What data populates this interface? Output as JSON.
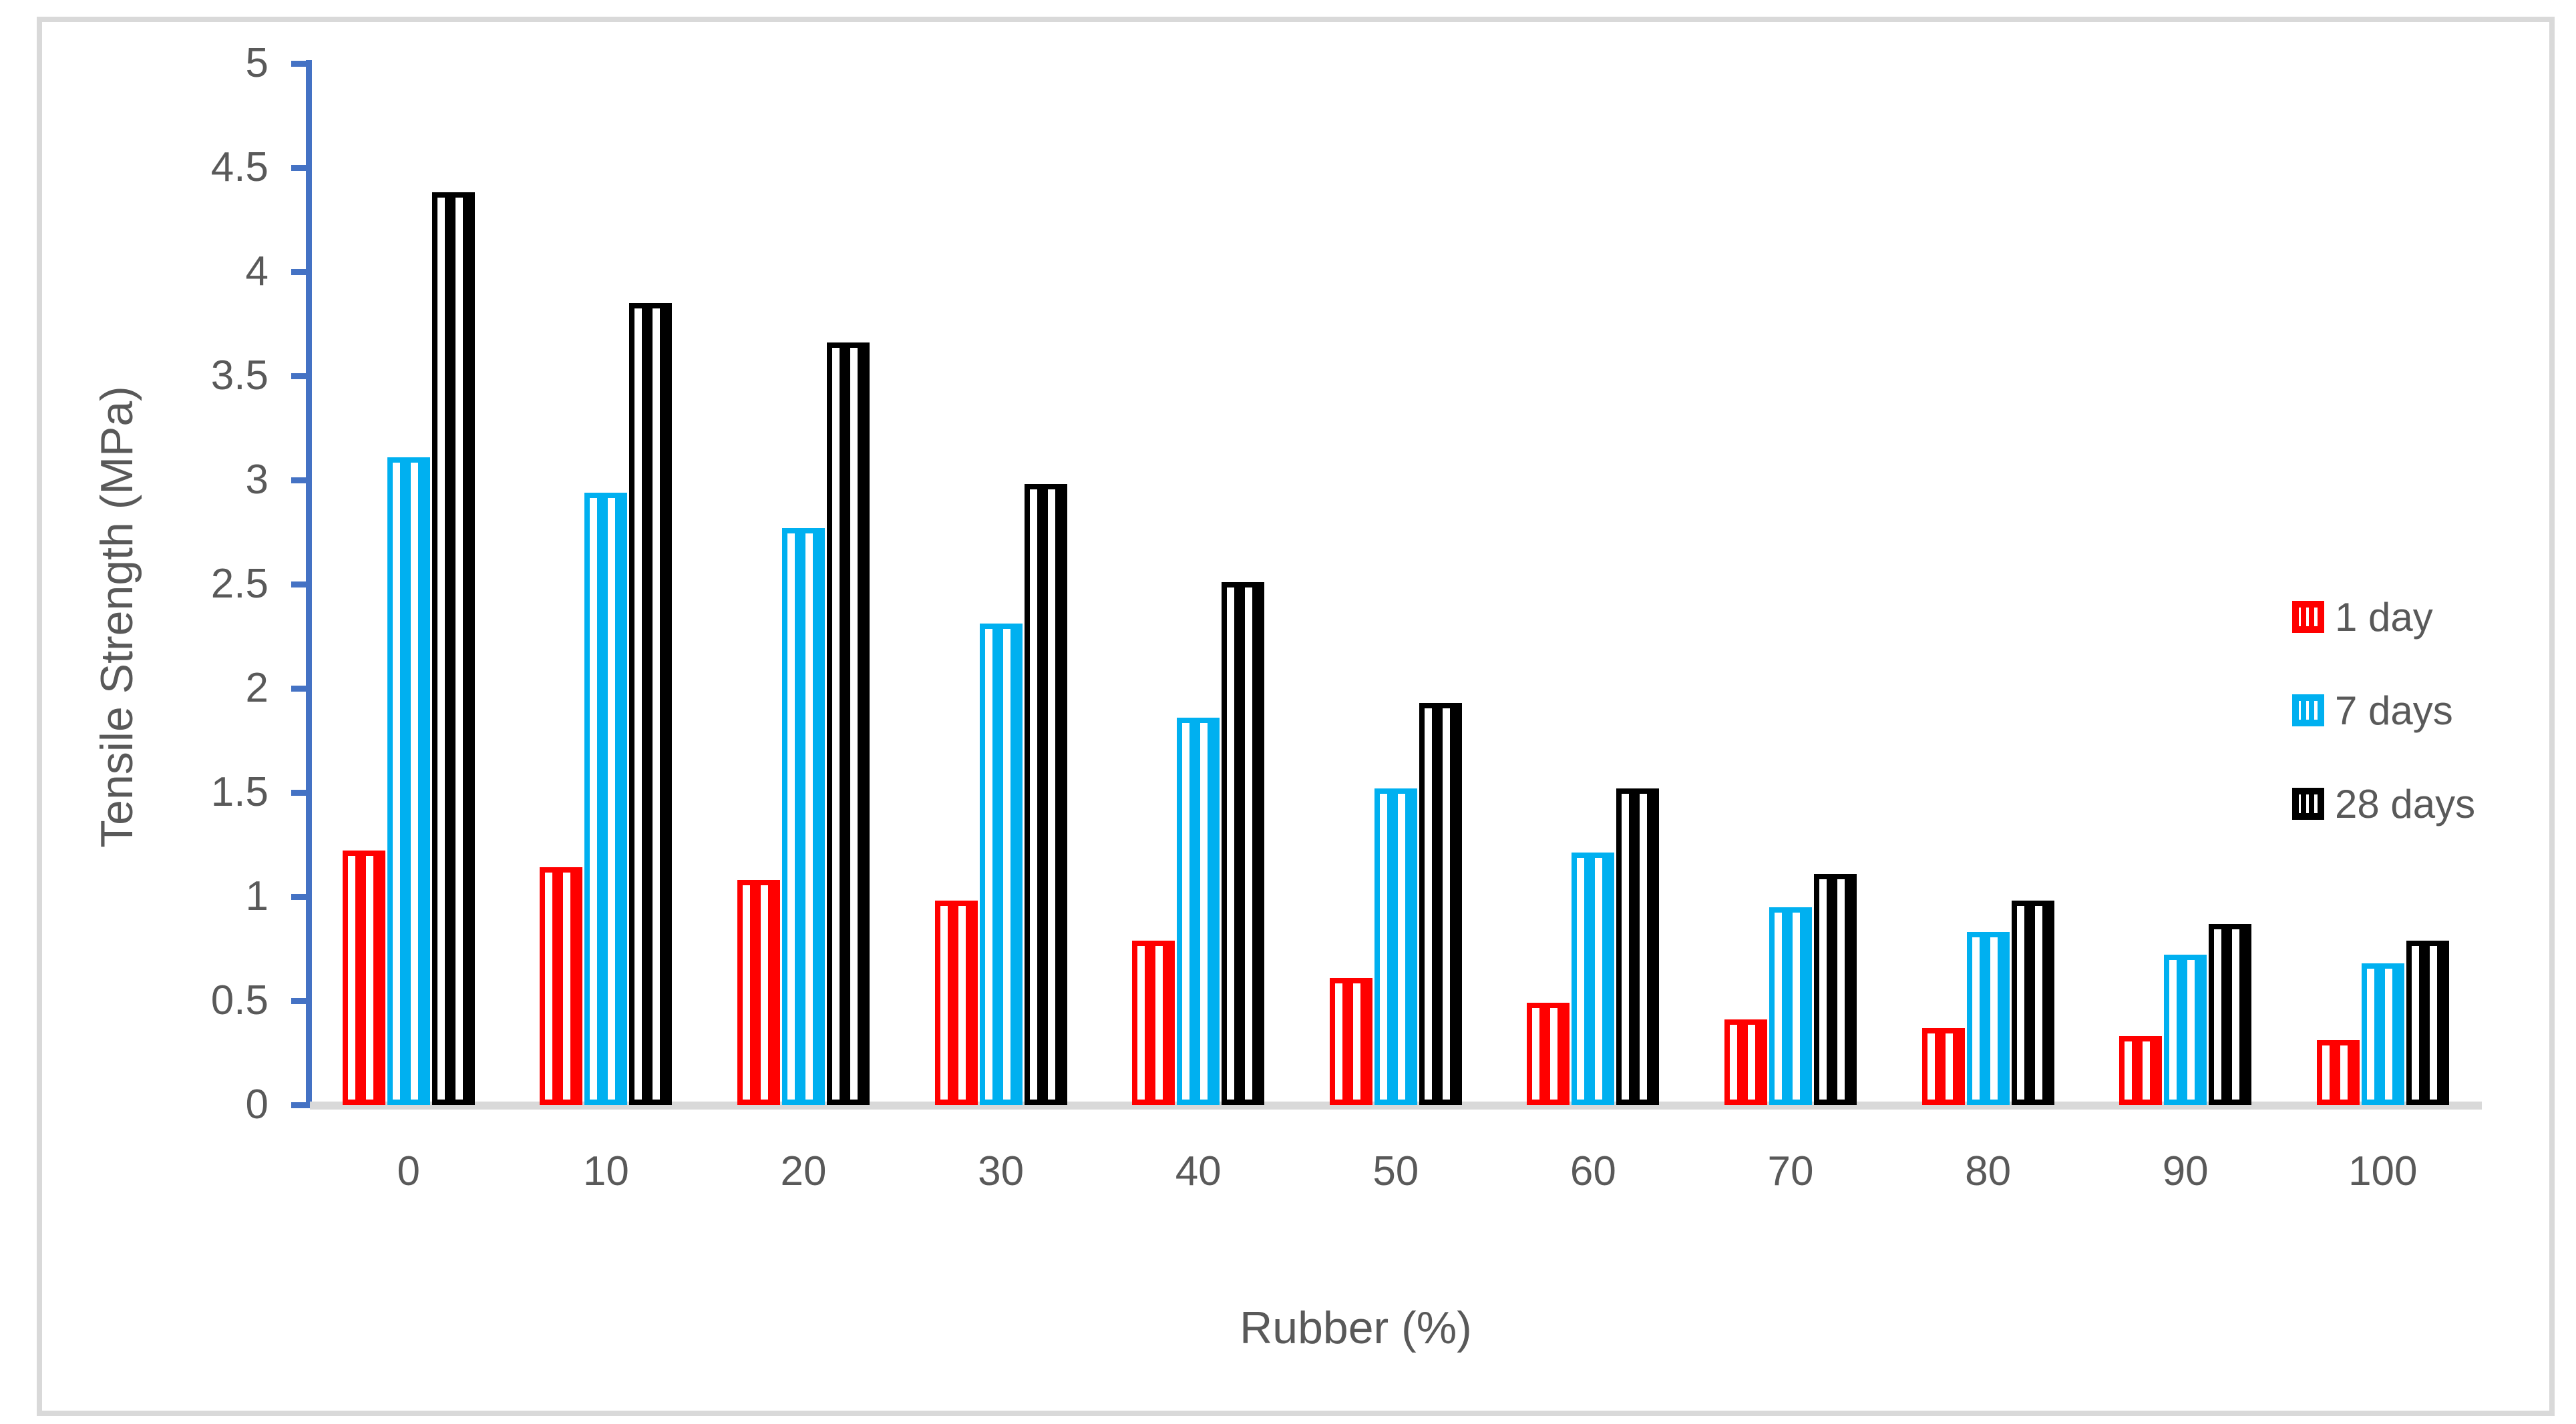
{
  "colors": {
    "axis_line": "#4472C4",
    "baseline": "#D9D9D9",
    "frame_border": "#D9D9D9",
    "label_text": "#595959",
    "background": "#ffffff"
  },
  "chart_data": {
    "type": "bar",
    "title": "",
    "xlabel": "Rubber (%)",
    "ylabel": "Tensile  Strength (MPa)",
    "categories": [
      "0",
      "10",
      "20",
      "30",
      "40",
      "50",
      "60",
      "70",
      "80",
      "90",
      "100"
    ],
    "y_tick_labels": [
      "0",
      "0.5",
      "1",
      "1.5",
      "2",
      "2.5",
      "3",
      "3.5",
      "4",
      "4.5",
      "5"
    ],
    "y_ticks": [
      0,
      0.5,
      1,
      1.5,
      2,
      2.5,
      3,
      3.5,
      4,
      4.5,
      5
    ],
    "ylim": [
      0,
      5
    ],
    "grid": false,
    "legend_position": "right",
    "bar_fill_style": "vertical-stripes-on-white",
    "series": [
      {
        "name": "1 day",
        "color": "#FF0000",
        "values": [
          1.22,
          1.14,
          1.08,
          0.98,
          0.79,
          0.61,
          0.49,
          0.41,
          0.37,
          0.33,
          0.31
        ]
      },
      {
        "name": "7 days",
        "color": "#00B0F0",
        "values": [
          3.11,
          2.94,
          2.77,
          2.31,
          1.86,
          1.52,
          1.21,
          0.95,
          0.83,
          0.72,
          0.68
        ]
      },
      {
        "name": "28 days",
        "color": "#000000",
        "values": [
          4.38,
          3.85,
          3.66,
          2.98,
          2.51,
          1.93,
          1.52,
          1.11,
          0.98,
          0.87,
          0.79
        ]
      }
    ]
  }
}
